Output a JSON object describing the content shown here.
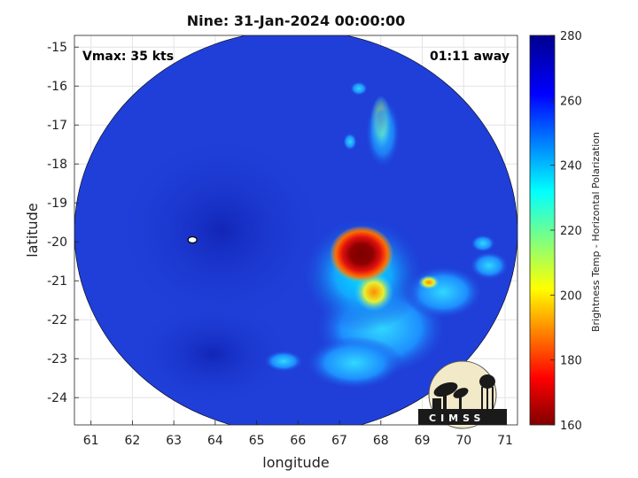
{
  "title": "Nine: 31-Jan-2024 00:00:00",
  "annotations": {
    "vmax": "Vmax: 35 kts",
    "away": "01:11 away"
  },
  "axes": {
    "xlabel": "longitude",
    "ylabel": "latitude",
    "xlim": [
      60.6,
      71.3
    ],
    "ylim": [
      -24.7,
      -14.7
    ],
    "xticks": [
      "61",
      "62",
      "63",
      "64",
      "65",
      "66",
      "67",
      "68",
      "69",
      "70",
      "71"
    ],
    "yticks": [
      "-15",
      "-16",
      "-17",
      "-18",
      "-19",
      "-20",
      "-21",
      "-22",
      "-23",
      "-24"
    ],
    "grid": true
  },
  "colorbar": {
    "label": "Brightness Temp - Horizontal Polarization",
    "ticks": [
      "280",
      "260",
      "240",
      "220",
      "200",
      "180",
      "160"
    ],
    "range": [
      160,
      280
    ],
    "colormap": "jet"
  },
  "swath": {
    "center": [
      66.0,
      -19.8
    ],
    "background_color": "#1f3fd8",
    "features": [
      {
        "name": "convective-core",
        "lon": 67.6,
        "lat": -20.3,
        "tb": 165
      },
      {
        "name": "red-ring",
        "lon": 67.55,
        "lat": -20.35,
        "tb": 185
      },
      {
        "name": "warm-band-north",
        "lon": 67.9,
        "lat": -16.9,
        "tb": 205
      },
      {
        "name": "warm-spot-east",
        "lon": 69.3,
        "lat": -21.0,
        "tb": 190
      }
    ]
  },
  "storm_marker": {
    "lon": 63.45,
    "lat": -19.95
  },
  "logo": {
    "text": "CIMSS"
  }
}
